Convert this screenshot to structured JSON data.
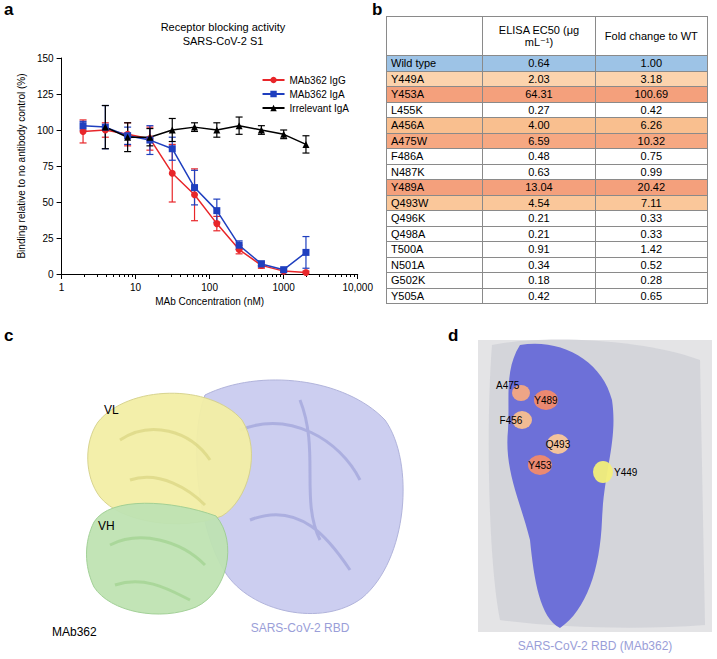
{
  "panel_labels": [
    "a",
    "b",
    "c",
    "d"
  ],
  "chart_data": {
    "type": "line",
    "title": "Receptor blocking activity",
    "subtitle": "SARS-CoV-2 S1",
    "x_label": "MAb Concentration (nM)",
    "y_label": "Binding relative to no antibody control (%)",
    "log": "x",
    "grid": false,
    "legend": "upper-right",
    "x": [
      1.95,
      3.9,
      7.8,
      15.6,
      31.25,
      62.5,
      125,
      250,
      500,
      1000,
      2000
    ],
    "xlim": [
      1,
      10000
    ],
    "xticks": [
      1,
      10,
      100,
      1000,
      {
        "value": 10000,
        "label": "10,000"
      }
    ],
    "ylim": [
      0,
      150
    ],
    "yticks": [
      0,
      25,
      50,
      75,
      100,
      125,
      150
    ],
    "series": [
      {
        "name": "MAb362 IgG",
        "color": "#e8262a",
        "marker": "circle",
        "values": [
          99,
          100,
          97,
          94,
          70,
          55,
          35,
          17,
          6,
          2,
          1
        ],
        "errors": [
          8,
          5,
          8,
          8,
          20,
          18,
          5,
          3,
          2,
          1,
          1
        ]
      },
      {
        "name": "MAb362 IgA",
        "color": "#1f3fbf",
        "marker": "square",
        "values": [
          103,
          102,
          96,
          93,
          87,
          60,
          44,
          20,
          7,
          3,
          15
        ],
        "errors": [
          3,
          15,
          6,
          10,
          8,
          12,
          8,
          3,
          2,
          1,
          11
        ]
      },
      {
        "name": "Irrelevant IgA",
        "color": "#000000",
        "marker": "triangle",
        "values": [
          null,
          102,
          95,
          95,
          100,
          102,
          100,
          103,
          100,
          97,
          90
        ],
        "errors": [
          null,
          15,
          10,
          6,
          8,
          3,
          5,
          6,
          3,
          3,
          6
        ]
      }
    ]
  },
  "table": {
    "header": [
      "",
      "ELISA EC50 (μg mL⁻¹)",
      "Fold change to WT"
    ],
    "rows": [
      {
        "cells": [
          "Wild type",
          "0.64",
          "1.00"
        ],
        "color": "#9dc3e6"
      },
      {
        "cells": [
          "Y449A",
          "2.03",
          "3.18"
        ],
        "color": "#fcd3ad"
      },
      {
        "cells": [
          "Y453A",
          "64.31",
          "100.69"
        ],
        "color": "#f4a07c"
      },
      {
        "cells": [
          "L455K",
          "0.27",
          "0.42"
        ],
        "color": "#ffffff"
      },
      {
        "cells": [
          "A456A",
          "4.00",
          "6.26"
        ],
        "color": "#f9bf8f"
      },
      {
        "cells": [
          "A475W",
          "6.59",
          "10.32"
        ],
        "color": "#f6a882"
      },
      {
        "cells": [
          "F486A",
          "0.48",
          "0.75"
        ],
        "color": "#ffffff"
      },
      {
        "cells": [
          "N487K",
          "0.63",
          "0.99"
        ],
        "color": "#ffffff"
      },
      {
        "cells": [
          "Y489A",
          "13.04",
          "20.42"
        ],
        "color": "#f4a07c"
      },
      {
        "cells": [
          "Q493W",
          "4.54",
          "7.11"
        ],
        "color": "#fac79a"
      },
      {
        "cells": [
          "Q496K",
          "0.21",
          "0.33"
        ],
        "color": "#ffffff"
      },
      {
        "cells": [
          "Q498A",
          "0.21",
          "0.33"
        ],
        "color": "#ffffff"
      },
      {
        "cells": [
          "T500A",
          "0.91",
          "1.42"
        ],
        "color": "#ffffff"
      },
      {
        "cells": [
          "N501A",
          "0.34",
          "0.52"
        ],
        "color": "#ffffff"
      },
      {
        "cells": [
          "G502K",
          "0.18",
          "0.28"
        ],
        "color": "#ffffff"
      },
      {
        "cells": [
          "Y505A",
          "0.42",
          "0.65"
        ],
        "color": "#ffffff"
      }
    ]
  },
  "structure_c": {
    "vl": {
      "label": "VL",
      "color": "#f3efa6"
    },
    "vh": {
      "label": "VH",
      "color": "#bfe3b3"
    },
    "antibody": "MAb362",
    "rbd": {
      "label": "SARS-CoV-2 RBD",
      "color": "#c7c9ef"
    }
  },
  "structure_d": {
    "caption": "SARS-CoV-2 RBD (MAb362)",
    "epitope_color": "#6d70d8",
    "residues": [
      {
        "label": "A475",
        "color": "#f6a882"
      },
      {
        "label": "Y489",
        "color": "#f28a6c"
      },
      {
        "label": "F456",
        "color": "#f9bf8f"
      },
      {
        "label": "Q493",
        "color": "#fac79a"
      },
      {
        "label": "Y453",
        "color": "#f28a6c"
      },
      {
        "label": "Y449",
        "color": "#f3ef7a"
      }
    ]
  }
}
